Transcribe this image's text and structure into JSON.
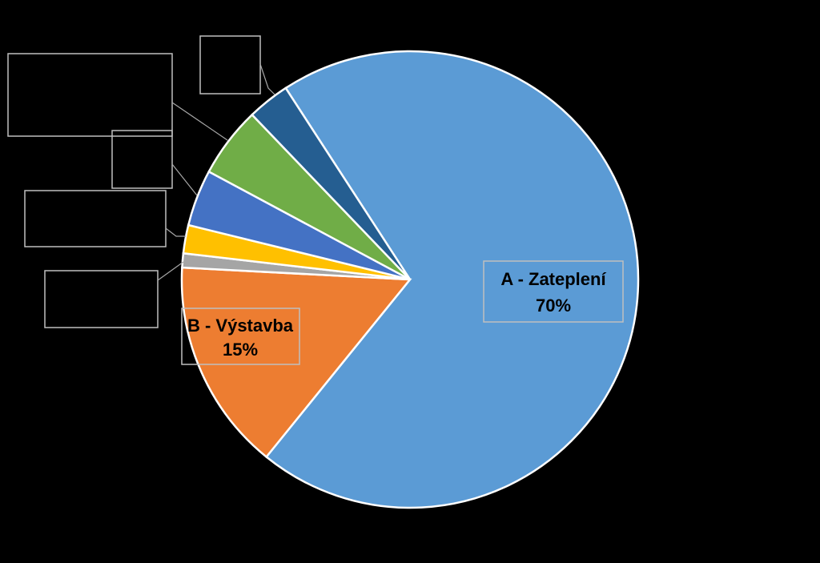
{
  "chart_data": {
    "type": "pie",
    "categories": [
      "A - Zateplení",
      "B - Výstavba",
      null,
      null,
      null,
      null,
      null
    ],
    "values": [
      70,
      15,
      1,
      2,
      4,
      5,
      3
    ],
    "value_labels": [
      "70%",
      "15%",
      null,
      null,
      null,
      null,
      null
    ],
    "colors": [
      "#5b9bd5",
      "#ed7d31",
      "#a5a5a5",
      "#ffc000",
      "#4472c4",
      "#70ad47",
      "#255e91"
    ]
  }
}
